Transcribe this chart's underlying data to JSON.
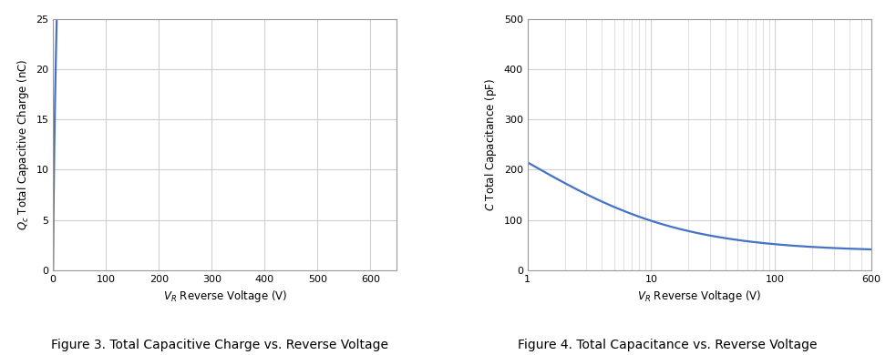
{
  "fig3": {
    "title": "Figure 3. Total Capacitive Charge vs. Reverse Voltage",
    "xlabel": "$V_R$ Reverse Voltage (V)",
    "ylabel": "$Q_c$ Total Capacitive Charge (nC)",
    "xlim": [
      0,
      650
    ],
    "ylim": [
      0,
      25
    ],
    "xticks": [
      0,
      100,
      200,
      300,
      400,
      500,
      600
    ],
    "yticks": [
      0,
      5,
      10,
      15,
      20,
      25
    ],
    "line_color": "#4472c4",
    "line_width": 1.6
  },
  "fig4": {
    "title": "Figure 4. Total Capacitance vs. Reverse Voltage",
    "xlabel": "$V_R$ Reverse Voltage (V)",
    "ylabel": "$C$ Total Capacitance (pF)",
    "xlim_log": [
      1,
      600
    ],
    "ylim": [
      0,
      500
    ],
    "yticks": [
      0,
      100,
      200,
      300,
      400,
      500
    ],
    "line_color": "#4472c4",
    "line_width": 1.6
  },
  "background_color": "#ffffff",
  "grid_color": "#d0d0d0",
  "title_color": "#000000",
  "caption_fontsize": 10,
  "axis_fontsize": 8.5,
  "tick_fontsize": 8,
  "font_family": "DejaVu Sans"
}
